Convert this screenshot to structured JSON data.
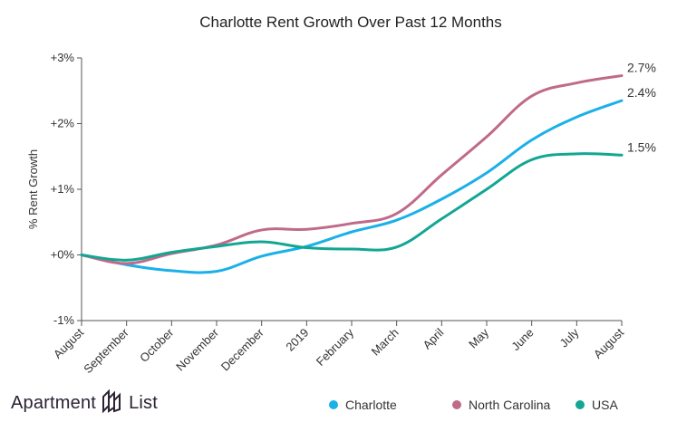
{
  "chart_data": {
    "type": "line",
    "title": "Charlotte Rent Growth Over Past 12 Months",
    "ylabel": "% Rent Growth",
    "xlabel": "",
    "ylim": [
      -1,
      3
    ],
    "yticks": [
      {
        "value": -1,
        "label": "-1%"
      },
      {
        "value": 0,
        "label": "+0%"
      },
      {
        "value": 1,
        "label": "+1%"
      },
      {
        "value": 2,
        "label": "+2%"
      },
      {
        "value": 3,
        "label": "+3%"
      }
    ],
    "categories": [
      "August",
      "September",
      "October",
      "November",
      "December",
      "2019",
      "February",
      "March",
      "April",
      "May",
      "June",
      "July",
      "August"
    ],
    "grid": false,
    "legend": "bottom-right",
    "series": [
      {
        "name": "Charlotte",
        "color": "#1ab0e8",
        "values": [
          0.0,
          -0.15,
          -0.24,
          -0.25,
          -0.02,
          0.13,
          0.35,
          0.53,
          0.85,
          1.25,
          1.75,
          2.1,
          2.35
        ],
        "end_label": "2.4%"
      },
      {
        "name": "North Carolina",
        "color": "#c06a8a",
        "values": [
          0.0,
          -0.13,
          0.02,
          0.15,
          0.38,
          0.39,
          0.48,
          0.63,
          1.22,
          1.8,
          2.42,
          2.62,
          2.73
        ],
        "end_label": "2.7%"
      },
      {
        "name": "USA",
        "color": "#12a693",
        "values": [
          0.0,
          -0.08,
          0.04,
          0.13,
          0.2,
          0.11,
          0.09,
          0.12,
          0.55,
          1.0,
          1.45,
          1.54,
          1.52
        ],
        "end_label": "1.5%"
      }
    ]
  },
  "brand": {
    "left": "Apartment",
    "right": "List"
  }
}
